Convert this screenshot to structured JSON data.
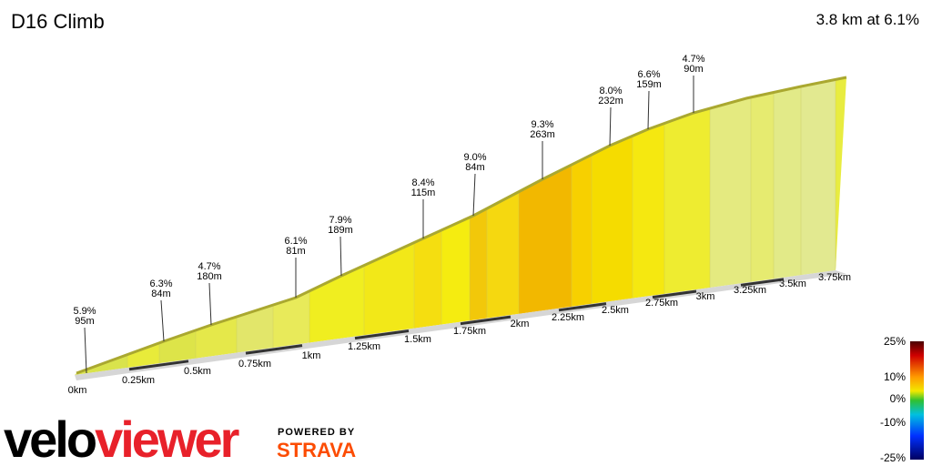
{
  "header": {
    "title": "D16 Climb",
    "summary": "3.8 km at 6.1%"
  },
  "annotations": [
    {
      "grade": "5.9%",
      "length": "95m"
    },
    {
      "grade": "6.3%",
      "length": "84m"
    },
    {
      "grade": "4.7%",
      "length": "180m"
    },
    {
      "grade": "6.1%",
      "length": "81m"
    },
    {
      "grade": "7.9%",
      "length": "189m"
    },
    {
      "grade": "8.4%",
      "length": "115m"
    },
    {
      "grade": "9.0%",
      "length": "84m"
    },
    {
      "grade": "9.3%",
      "length": "263m"
    },
    {
      "grade": "8.0%",
      "length": "232m"
    },
    {
      "grade": "6.6%",
      "length": "159m"
    },
    {
      "grade": "4.7%",
      "length": "90m"
    }
  ],
  "distance_labels": [
    "0km",
    "0.25km",
    "0.5km",
    "0.75km",
    "1km",
    "1.25km",
    "1.5km",
    "1.75km",
    "2km",
    "2.25km",
    "2.5km",
    "2.75km",
    "3km",
    "3.25km",
    "3.5km",
    "3.75km"
  ],
  "legend": [
    "25%",
    "10%",
    "0%",
    "-10%",
    "-25%"
  ],
  "brand": {
    "part1": "velo",
    "part2": "viewer",
    "powered_by": "POWERED BY",
    "partner": "STRAVA"
  }
}
